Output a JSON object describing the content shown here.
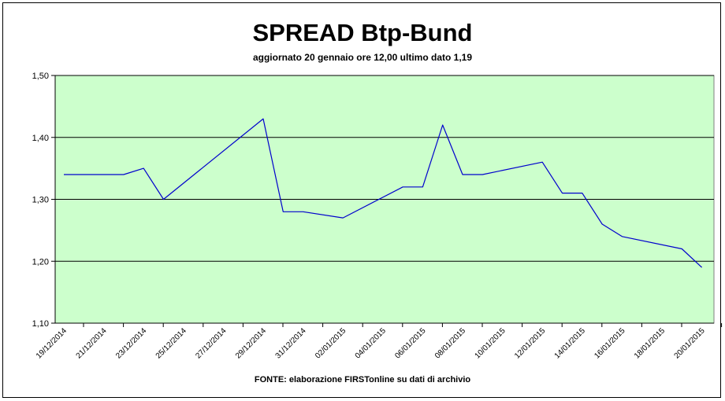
{
  "chart_data": {
    "type": "line",
    "title": "SPREAD Btp-Bund",
    "subtitle": "aggiornato 20 gennaio ore 12,00  ultimo dato  1,19",
    "source": "FONTE: elaborazione FIRSTonline su dati di archivio",
    "xlabel": "",
    "ylabel": "",
    "ylim": [
      1.1,
      1.5
    ],
    "yticks": [
      "1,10",
      "1,20",
      "1,30",
      "1,40",
      "1,50"
    ],
    "ytick_values": [
      1.1,
      1.2,
      1.3,
      1.4,
      1.5
    ],
    "xticks": [
      "19/12/2014",
      "21/12/2014",
      "23/12/2014",
      "25/12/2014",
      "27/12/2014",
      "29/12/2014",
      "31/12/2014",
      "02/01/2015",
      "04/01/2015",
      "06/01/2015",
      "08/01/2015",
      "10/01/2015",
      "12/01/2015",
      "14/01/2015",
      "16/01/2015",
      "18/01/2015",
      "20/01/2015"
    ],
    "grid": true,
    "legend": "none",
    "colors": {
      "plot_bg": "#ccffcc",
      "line": "#0000cc",
      "grid": "#000000"
    },
    "series": [
      {
        "x": [
          "19/12/2014",
          "22/12/2014",
          "23/12/2014",
          "24/12/2014",
          "29/12/2014",
          "30/12/2014",
          "31/12/2014",
          "02/01/2015",
          "05/01/2015",
          "06/01/2015",
          "07/01/2015",
          "08/01/2015",
          "09/01/2015",
          "12/01/2015",
          "13/01/2015",
          "14/01/2015",
          "15/01/2015",
          "16/01/2015",
          "19/01/2015",
          "20/01/2015"
        ],
        "values": [
          1.34,
          1.34,
          1.35,
          1.3,
          1.43,
          1.28,
          1.28,
          1.27,
          1.32,
          1.32,
          1.42,
          1.34,
          1.34,
          1.36,
          1.31,
          1.31,
          1.26,
          1.24,
          1.22,
          1.19
        ]
      }
    ]
  }
}
